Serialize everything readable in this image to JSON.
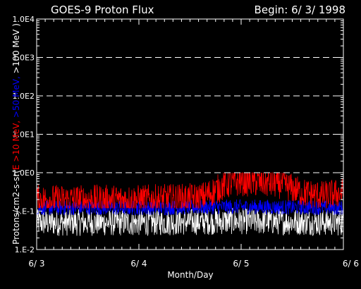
{
  "chart_data": {
    "type": "line",
    "title": "GOES-9 Proton Flux",
    "begin_label": "Begin: 6/ 3/ 1998",
    "xlabel": "Month/Day",
    "ylabel_parts": [
      {
        "text": "Protons/cm2-s-sr(",
        "color": "#ffffff"
      },
      {
        "text": "E >10 MeV, ",
        "color": "#ff0000"
      },
      {
        "text": ">50 MeV, ",
        "color": "#0000ff"
      },
      {
        "text": ">100 MeV )",
        "color": "#ffffff"
      }
    ],
    "y_scale": "log",
    "ylim": [
      0.01,
      10000
    ],
    "y_ticks": [
      {
        "value": 10000,
        "label": "1.0E4"
      },
      {
        "value": 1000,
        "label": "1.0E3"
      },
      {
        "value": 100,
        "label": "1.0E2"
      },
      {
        "value": 10,
        "label": "1.0E1"
      },
      {
        "value": 1,
        "label": "1.0E0"
      },
      {
        "value": 0.1,
        "label": "1.E-1"
      },
      {
        "value": 0.01,
        "label": "1.E-2"
      }
    ],
    "grid_lines": [
      1,
      10,
      100,
      1000
    ],
    "xlim": [
      0,
      3
    ],
    "x_ticks": [
      {
        "value": 0,
        "label": "6/ 3"
      },
      {
        "value": 1,
        "label": "6/ 4"
      },
      {
        "value": 2,
        "label": "6/ 5"
      },
      {
        "value": 3,
        "label": "6/ 6"
      }
    ],
    "series": [
      {
        "name": ">10 MeV",
        "color": "#ff0000",
        "profile": {
          "x": [
            0,
            1.0,
            1.6,
            1.75,
            1.85,
            2.0,
            2.2,
            2.4,
            2.6,
            2.8,
            3.0
          ],
          "y": [
            0.2,
            0.2,
            0.22,
            0.35,
            0.5,
            0.6,
            0.55,
            0.5,
            0.3,
            0.25,
            0.3
          ]
        },
        "noise_range": [
          0.12,
          1.0
        ]
      },
      {
        "name": ">50 MeV",
        "color": "#0000ff",
        "profile": {
          "x": [
            0,
            1.0,
            2.0,
            3.0
          ],
          "y": [
            0.12,
            0.12,
            0.13,
            0.12
          ]
        },
        "noise_range": [
          0.08,
          0.25
        ]
      },
      {
        "name": ">100 MeV",
        "color": "#ffffff",
        "profile": {
          "x": [
            0,
            1.0,
            2.0,
            3.0
          ],
          "y": [
            0.05,
            0.05,
            0.055,
            0.05
          ]
        },
        "noise_range": [
          0.02,
          0.12
        ]
      }
    ]
  }
}
